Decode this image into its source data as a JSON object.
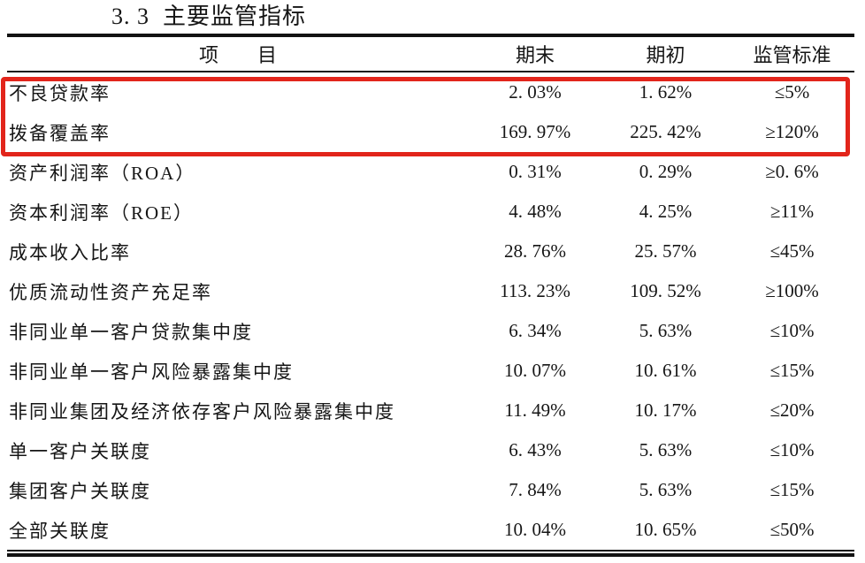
{
  "page": {
    "title": "3. 3  主要监管指标"
  },
  "table": {
    "headers": {
      "item": "项　　目",
      "period_end": "期末",
      "period_begin": "期初",
      "standard": "监管标准"
    },
    "rows": [
      {
        "item": "不良贷款率",
        "end": "2. 03%",
        "begin": "1. 62%",
        "std": "≤5%",
        "highlighted": "true"
      },
      {
        "item": "拨备覆盖率",
        "end": "169. 97%",
        "begin": "225. 42%",
        "std": "≥120%",
        "highlighted": "true"
      },
      {
        "item": "资产利润率（ROA）",
        "end": "0. 31%",
        "begin": "0. 29%",
        "std": "≥0. 6%",
        "highlighted": "false"
      },
      {
        "item": "资本利润率（ROE）",
        "end": "4. 48%",
        "begin": "4. 25%",
        "std": "≥11%",
        "highlighted": "false"
      },
      {
        "item": "成本收入比率",
        "end": "28. 76%",
        "begin": "25. 57%",
        "std": "≤45%",
        "highlighted": "false"
      },
      {
        "item": "优质流动性资产充足率",
        "end": "113. 23%",
        "begin": "109. 52%",
        "std": "≥100%",
        "highlighted": "false"
      },
      {
        "item": "非同业单一客户贷款集中度",
        "end": "6. 34%",
        "begin": "5. 63%",
        "std": "≤10%",
        "highlighted": "false"
      },
      {
        "item": "非同业单一客户风险暴露集中度",
        "end": "10. 07%",
        "begin": "10. 61%",
        "std": "≤15%",
        "highlighted": "false"
      },
      {
        "item": "非同业集团及经济依存客户风险暴露集中度",
        "end": "11. 49%",
        "begin": "10. 17%",
        "std": "≤20%",
        "highlighted": "false"
      },
      {
        "item": "单一客户关联度",
        "end": "6. 43%",
        "begin": "5. 63%",
        "std": "≤10%",
        "highlighted": "false"
      },
      {
        "item": "集团客户关联度",
        "end": "7. 84%",
        "begin": "5. 63%",
        "std": "≤15%",
        "highlighted": "false"
      },
      {
        "item": "全部关联度",
        "end": "10. 04%",
        "begin": "10. 65%",
        "std": "≤50%",
        "highlighted": "false"
      }
    ],
    "highlight_color": "#e2251b"
  }
}
